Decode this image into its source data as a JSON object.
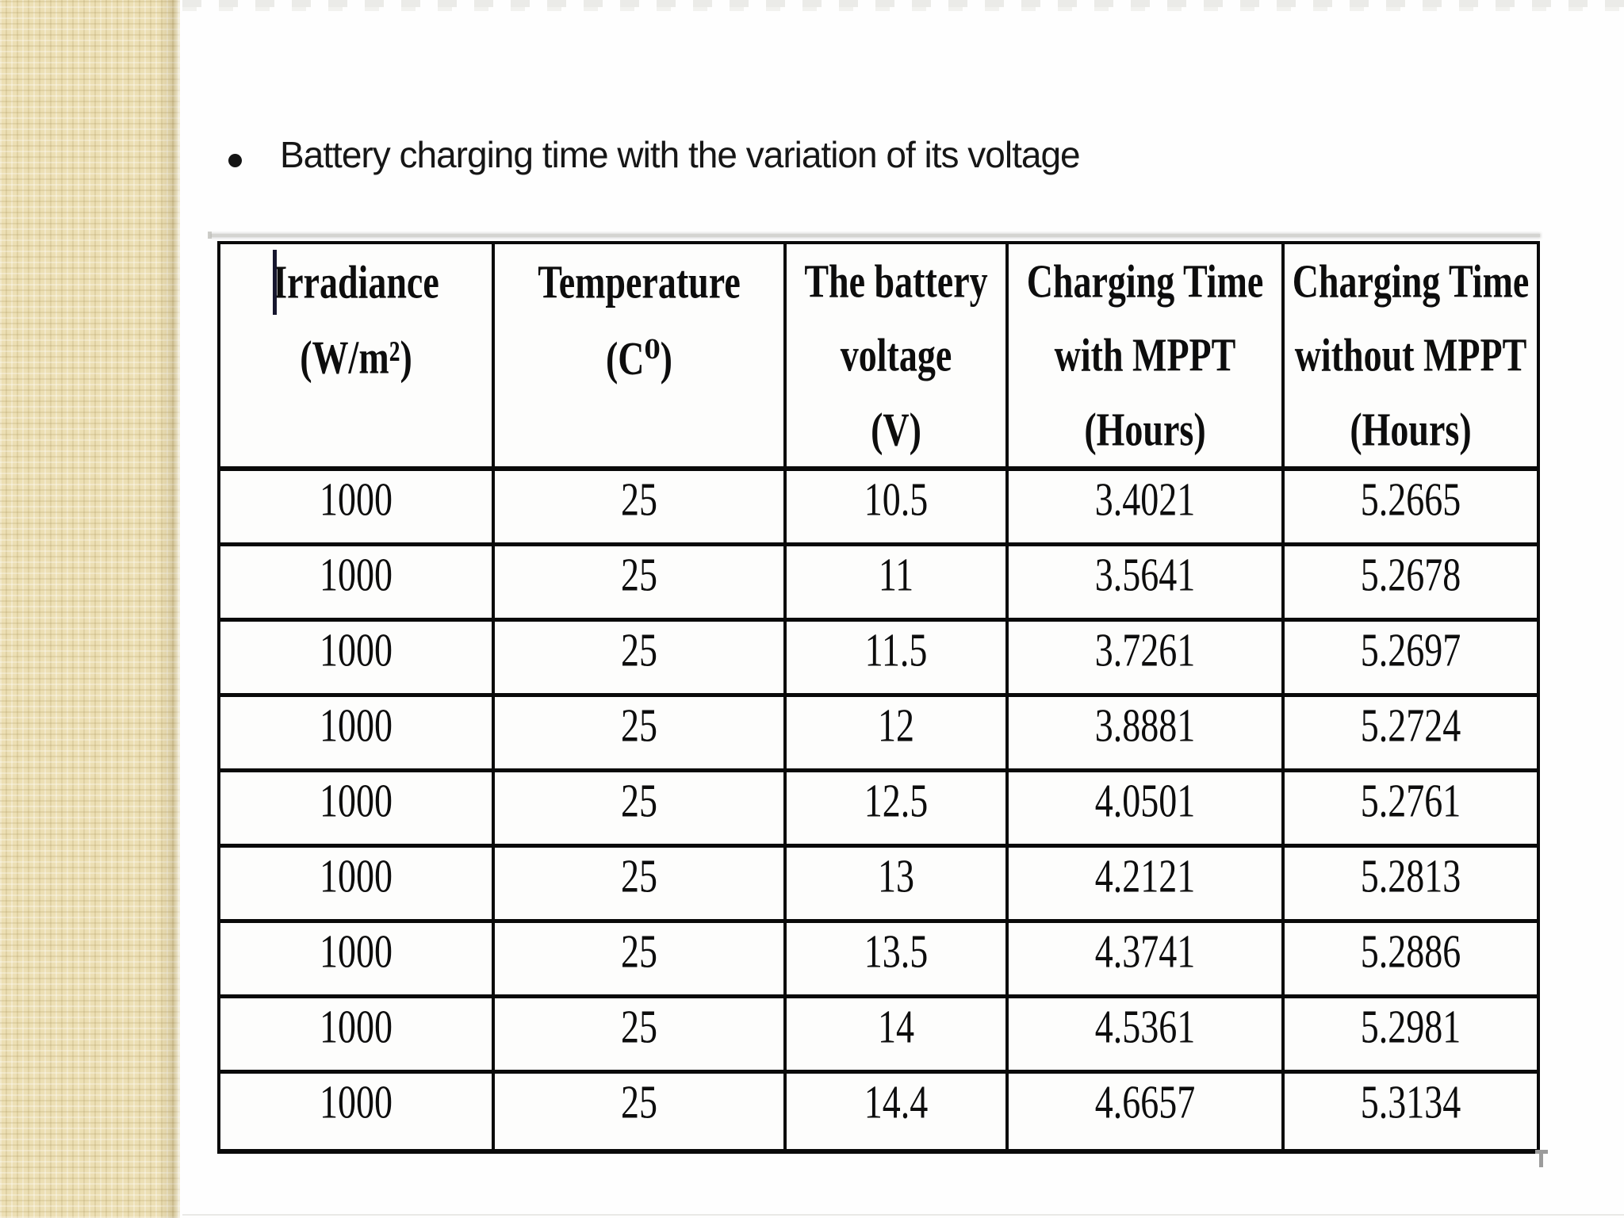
{
  "slide": {
    "title": "Battery charging time with the variation of its voltage",
    "bullet_glyph": "•"
  },
  "table": {
    "header_lines": [
      [
        "Irradiance",
        "(W/m²)"
      ],
      [
        "Temperature",
        "(C⁰)"
      ],
      [
        "The battery",
        "voltage",
        "(V)"
      ],
      [
        "Charging Time",
        "with MPPT",
        "(Hours)"
      ],
      [
        "Charging Time",
        "without  MPPT",
        "(Hours)"
      ]
    ],
    "rows": [
      [
        "1000",
        "25",
        "10.5",
        "3.4021",
        "5.2665"
      ],
      [
        "1000",
        "25",
        "11",
        "3.5641",
        "5.2678"
      ],
      [
        "1000",
        "25",
        "11.5",
        "3.7261",
        "5.2697"
      ],
      [
        "1000",
        "25",
        "12",
        "3.8881",
        "5.2724"
      ],
      [
        "1000",
        "25",
        "12.5",
        "4.0501",
        "5.2761"
      ],
      [
        "1000",
        "25",
        "13",
        "4.2121",
        "5.2813"
      ],
      [
        "1000",
        "25",
        "13.5",
        "4.3741",
        "5.2886"
      ],
      [
        "1000",
        "25",
        "14",
        "4.5361",
        "5.2981"
      ],
      [
        "1000",
        "25",
        "14.4",
        "4.6657",
        "5.3134"
      ]
    ]
  },
  "colors": {
    "sidebar_beige": "#ecdfb4",
    "table_border": "#0a0a0a",
    "background": "#fefefe",
    "caret": "#16162e"
  }
}
